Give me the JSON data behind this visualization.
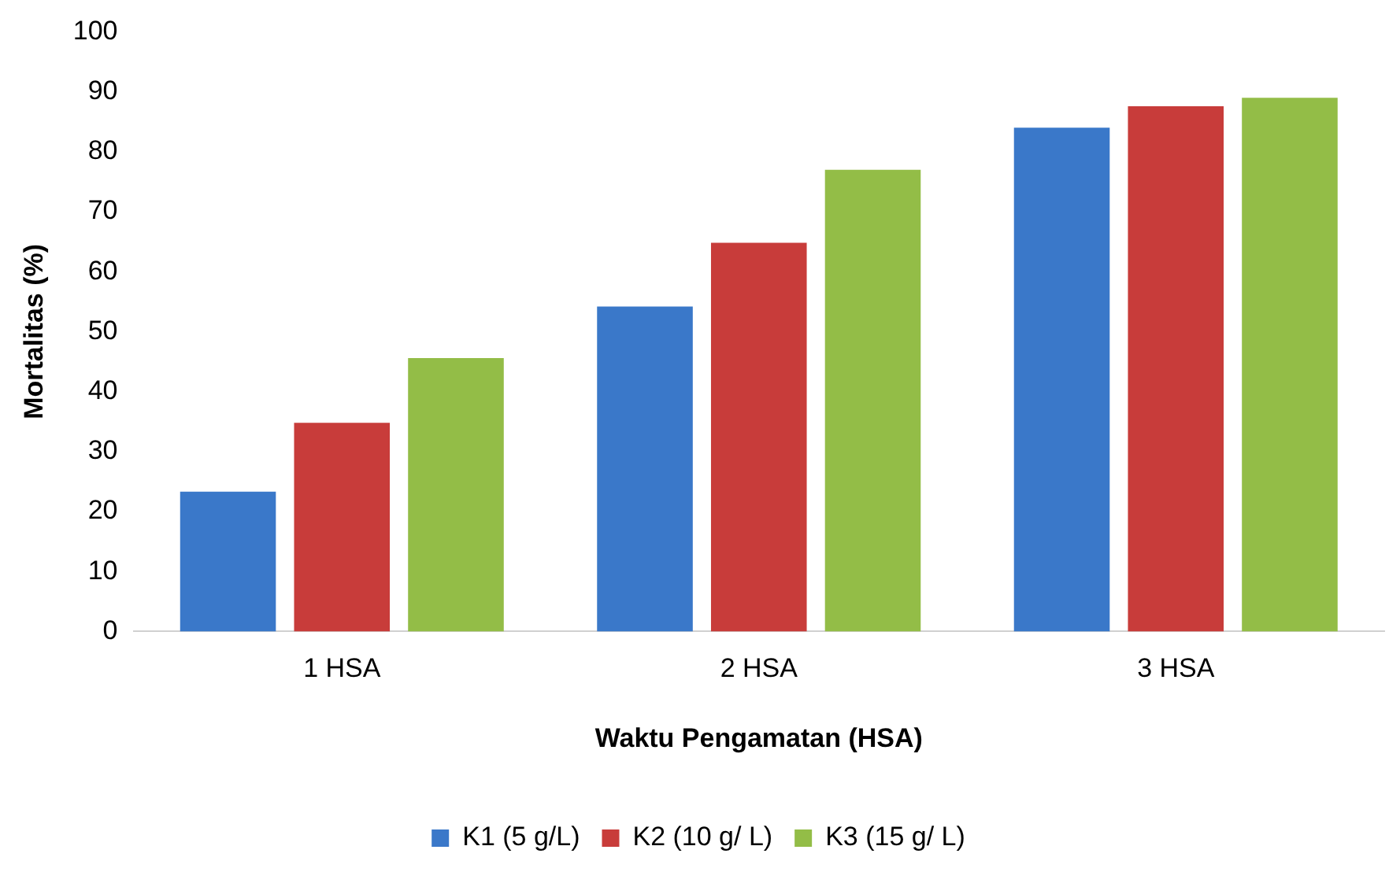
{
  "chart_data": {
    "type": "bar",
    "xlabel": "Waktu Pengamatan (HSA)",
    "ylabel": "Mortalitas (%)",
    "categories": [
      "1 HSA",
      "2 HSA",
      "3 HSA"
    ],
    "series": [
      {
        "name": "K1 (5 g/L)",
        "color": "#3a78c9",
        "values": [
          23.3,
          54.2,
          84
        ]
      },
      {
        "name": "K2 (10 g/ L)",
        "color": "#c83c3a",
        "values": [
          34.8,
          64.8,
          87.6
        ]
      },
      {
        "name": "K3 (15 g/ L)",
        "color": "#93bd47",
        "values": [
          45.6,
          77,
          89
        ]
      }
    ],
    "ylim": [
      0,
      100
    ],
    "yticks": [
      0,
      10,
      20,
      30,
      40,
      50,
      60,
      70,
      80,
      90,
      100
    ],
    "grid": false,
    "legend": "bottom"
  }
}
